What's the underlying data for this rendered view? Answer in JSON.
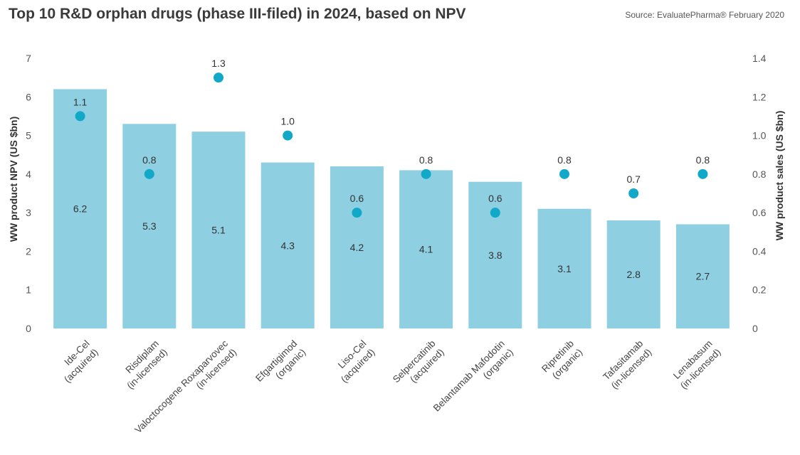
{
  "header": {
    "title": "Top 10 R&D orphan drugs (phase III-filed) in 2024, based on NPV",
    "source": "Source: EvaluatePharma® February 2020"
  },
  "colors": {
    "bar": "#8ecfe1",
    "dot": "#12a9c9"
  },
  "chart_data": {
    "type": "bar",
    "title": "Top 10 R&D orphan drugs (phase III-filed) in 2024, based on NPV",
    "categories": [
      [
        "Ide-Cel",
        "(acquired)"
      ],
      [
        "Risdiplam",
        "(in-licensed)"
      ],
      [
        "Valoctocogene Roxaparvovec",
        "(in-licensed)"
      ],
      [
        "Efgartigimod",
        "(organic)"
      ],
      [
        "Liso-Cel",
        "(acquired)"
      ],
      [
        "Selpercatinib",
        "(acquired)"
      ],
      [
        "Belantamab Mafodotin",
        "(organic)"
      ],
      [
        "Ripretinib",
        "(organic)"
      ],
      [
        "Tafasitamab",
        "(in-licensed)"
      ],
      [
        "Lenabasum",
        "(in-licensed)"
      ]
    ],
    "series": [
      {
        "name": "WW product NPV (US $bn)",
        "type": "bar",
        "axis": "left",
        "values": [
          6.2,
          5.3,
          5.1,
          4.3,
          4.2,
          4.1,
          3.8,
          3.1,
          2.8,
          2.7
        ],
        "labels": [
          "6.2",
          "5.3",
          "5.1",
          "4.3",
          "4.2",
          "4.1",
          "3.8",
          "3.1",
          "2.8",
          "2.7"
        ]
      },
      {
        "name": "WW product sales (US $bn)",
        "type": "scatter",
        "axis": "right",
        "values": [
          1.1,
          0.8,
          1.3,
          1.0,
          0.6,
          0.8,
          0.6,
          0.8,
          0.7,
          0.8
        ],
        "labels": [
          "1.1",
          "0.8",
          "1.3",
          "1.0",
          "0.6",
          "0.8",
          "0.6",
          "0.8",
          "0.7",
          "0.8"
        ]
      }
    ],
    "ylabel": "WW product NPV (US $bn)",
    "ylabel_right": "WW product sales (US $bn)",
    "ylim": [
      0,
      7
    ],
    "ylim_right": [
      0,
      1.4
    ],
    "yticks": [
      "0",
      "1",
      "2",
      "3",
      "4",
      "5",
      "6",
      "7"
    ],
    "yticks_right": [
      "0",
      "0.2",
      "0.4",
      "0.6",
      "0.8",
      "1.0",
      "1.2",
      "1.4"
    ],
    "grid": false,
    "legend": "none"
  }
}
